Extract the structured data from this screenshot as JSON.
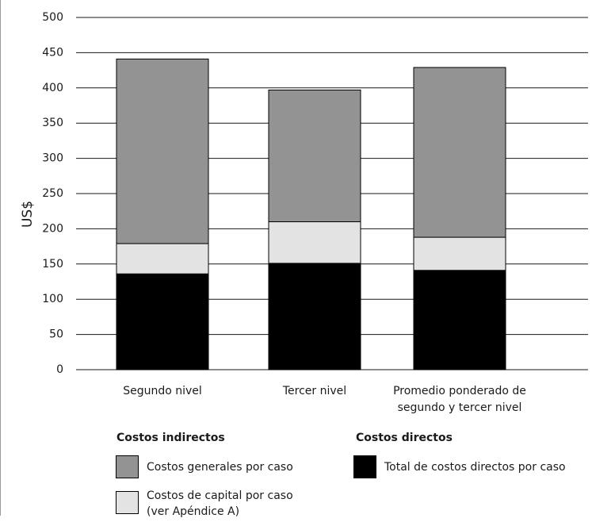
{
  "chart_data": {
    "type": "bar",
    "stacked": true,
    "ylabel": "US$",
    "ylim": [
      0,
      500
    ],
    "yticks": [
      0,
      50,
      100,
      150,
      200,
      250,
      300,
      350,
      400,
      450,
      500
    ],
    "grid": true,
    "categories": [
      [
        "Segundo nivel"
      ],
      [
        "Tercer nivel"
      ],
      [
        "Promedio ponderado de",
        "segundo y tercer nivel"
      ]
    ],
    "series": [
      {
        "name": "Total de costos directos por caso",
        "values": [
          136,
          151,
          141
        ],
        "color": "#000000"
      },
      {
        "name": "Costos de capital por caso (ver Apéndice A)",
        "values": [
          43,
          59,
          47
        ],
        "color": "#e3e3e3"
      },
      {
        "name": "Costos generales por caso",
        "values": [
          262,
          187,
          241
        ],
        "color": "#939393"
      }
    ]
  },
  "legend": {
    "indirect_title": "Costos indirectos",
    "direct_title": "Costos directos",
    "items": {
      "general": {
        "label": "Costos generales por caso",
        "color": "#939393"
      },
      "capital": {
        "label": "Costos de capital por caso\n(ver Apéndice A)",
        "color": "#e3e3e3"
      },
      "direct": {
        "label": "Total de costos directos por caso",
        "color": "#000000"
      }
    }
  }
}
